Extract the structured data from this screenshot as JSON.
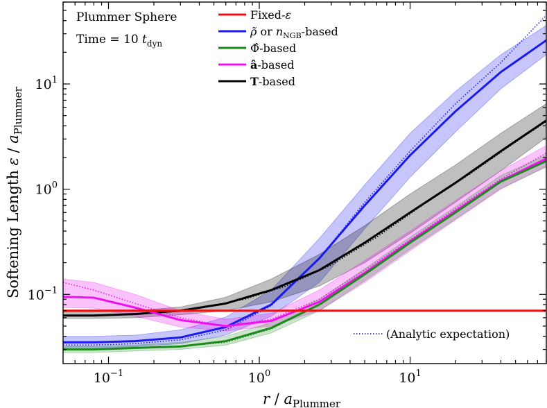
{
  "chart_data": {
    "type": "line",
    "xscale": "log",
    "yscale": "log",
    "xlim": [
      0.05,
      80
    ],
    "ylim": [
      0.022,
      60
    ],
    "xlabel_main": "r",
    "xlabel_sep": " / ",
    "xlabel_sym": "a",
    "xlabel_sub": "Plummer",
    "ylabel_main": "Softening Length  ",
    "ylabel_sym": "ε",
    "ylabel_sep": " / ",
    "ylabel_asym": "a",
    "ylabel_sub": "Plummer",
    "x_ticks": [
      {
        "value": 0.1,
        "base": "10",
        "exp": "−1"
      },
      {
        "value": 1,
        "base": "10",
        "exp": "0"
      },
      {
        "value": 10,
        "base": "10",
        "exp": "1"
      }
    ],
    "y_ticks": [
      {
        "value": 0.1,
        "base": "10",
        "exp": "−1"
      },
      {
        "value": 1,
        "base": "10",
        "exp": "0"
      },
      {
        "value": 10,
        "base": "10",
        "exp": "1"
      }
    ],
    "annotations": {
      "title_line1": "Plummer Sphere",
      "title_line2_prefix": "Time = 10 ",
      "title_line2_sym": "t",
      "title_line2_sub": "dyn",
      "analytic_label": "(Analytic expectation)"
    },
    "legend": {
      "placement": "top-center",
      "entries": [
        {
          "key": "fixed",
          "color": "#ee1111",
          "parts": [
            {
              "t": "Fixed-"
            },
            {
              "t": "ε",
              "i": true
            }
          ]
        },
        {
          "key": "rho",
          "color": "#1a1aee",
          "parts": [
            {
              "t": "ρ̃",
              "i": true
            },
            {
              "t": " or "
            },
            {
              "t": "n",
              "i": true
            },
            {
              "t": "NGB",
              "sub": true
            },
            {
              "t": "-based"
            }
          ]
        },
        {
          "key": "phi",
          "color": "#1a8a1a",
          "parts": [
            {
              "t": "Φ̂"
            },
            {
              "t": "-based"
            }
          ]
        },
        {
          "key": "acc",
          "color": "#ee11ee",
          "parts": [
            {
              "t": "â",
              "b": true
            },
            {
              "t": "-based"
            }
          ]
        },
        {
          "key": "tidal",
          "color": "#000000",
          "parts": [
            {
              "t": "T",
              "b": true
            },
            {
              "t": "-based"
            }
          ]
        }
      ]
    },
    "series": [
      {
        "key": "rho",
        "color": "#1a1aee",
        "band_opacity": 0.25,
        "x": [
          0.05,
          0.08,
          0.15,
          0.3,
          0.6,
          1.2,
          2.5,
          5,
          10,
          20,
          40,
          80
        ],
        "y": [
          0.035,
          0.035,
          0.036,
          0.039,
          0.049,
          0.08,
          0.22,
          0.7,
          2.1,
          5.5,
          13,
          26
        ],
        "lo": [
          0.031,
          0.031,
          0.032,
          0.034,
          0.041,
          0.062,
          0.13,
          0.42,
          1.3,
          3.5,
          9,
          19
        ],
        "hi": [
          0.04,
          0.04,
          0.041,
          0.046,
          0.061,
          0.11,
          0.34,
          1.1,
          3.4,
          8.5,
          19,
          36
        ],
        "analytic_x": [
          0.05,
          0.08,
          0.15,
          0.3,
          0.6,
          1.2,
          2.5,
          5,
          10,
          20,
          40,
          80
        ],
        "analytic_y": [
          0.033,
          0.033,
          0.034,
          0.037,
          0.046,
          0.078,
          0.22,
          0.75,
          2.3,
          6.5,
          16,
          45
        ]
      },
      {
        "key": "tidal",
        "color": "#000000",
        "band_opacity": 0.25,
        "x": [
          0.05,
          0.08,
          0.15,
          0.3,
          0.6,
          1.2,
          2.5,
          5,
          10,
          20,
          40,
          80
        ],
        "y": [
          0.063,
          0.063,
          0.065,
          0.07,
          0.082,
          0.11,
          0.17,
          0.31,
          0.6,
          1.15,
          2.3,
          4.5
        ],
        "lo": [
          0.059,
          0.059,
          0.06,
          0.064,
          0.07,
          0.085,
          0.12,
          0.2,
          0.38,
          0.75,
          1.5,
          3.1
        ],
        "hi": [
          0.068,
          0.068,
          0.07,
          0.076,
          0.094,
          0.14,
          0.24,
          0.45,
          0.9,
          1.7,
          3.4,
          6.5
        ],
        "analytic_x": [
          0.05,
          0.1,
          0.2,
          0.4,
          0.8,
          1.5,
          3,
          6,
          12,
          25,
          50,
          80
        ],
        "analytic_y": [
          0.063,
          0.064,
          0.067,
          0.074,
          0.09,
          0.12,
          0.19,
          0.35,
          0.7,
          1.4,
          2.8,
          4.4
        ]
      },
      {
        "key": "acc",
        "color": "#ee11ee",
        "band_opacity": 0.25,
        "x": [
          0.05,
          0.08,
          0.15,
          0.3,
          0.6,
          1.2,
          2.5,
          5,
          10,
          20,
          40,
          80
        ],
        "y": [
          0.095,
          0.093,
          0.075,
          0.057,
          0.05,
          0.056,
          0.085,
          0.16,
          0.32,
          0.62,
          1.2,
          1.95
        ],
        "lo": [
          0.075,
          0.074,
          0.062,
          0.049,
          0.045,
          0.05,
          0.07,
          0.13,
          0.26,
          0.51,
          1.0,
          1.65
        ],
        "hi": [
          0.14,
          0.13,
          0.1,
          0.07,
          0.058,
          0.066,
          0.11,
          0.21,
          0.4,
          0.78,
          1.5,
          2.6
        ],
        "analytic_x": [
          0.05,
          0.08,
          0.15,
          0.3,
          0.6,
          1.2,
          2.5,
          5,
          10,
          20,
          40,
          80
        ],
        "analytic_y": [
          0.13,
          0.11,
          0.082,
          0.06,
          0.05,
          0.058,
          0.09,
          0.17,
          0.33,
          0.65,
          1.25,
          2.2
        ]
      },
      {
        "key": "phi",
        "color": "#1a8a1a",
        "band_opacity": 0.22,
        "x": [
          0.05,
          0.08,
          0.15,
          0.3,
          0.6,
          1.2,
          2.5,
          5,
          10,
          20,
          40,
          80
        ],
        "y": [
          0.03,
          0.03,
          0.031,
          0.032,
          0.036,
          0.048,
          0.08,
          0.155,
          0.31,
          0.6,
          1.18,
          1.85
        ],
        "lo": [
          0.028,
          0.028,
          0.029,
          0.03,
          0.033,
          0.043,
          0.07,
          0.135,
          0.27,
          0.52,
          1.02,
          1.62
        ],
        "hi": [
          0.032,
          0.032,
          0.033,
          0.035,
          0.04,
          0.054,
          0.09,
          0.175,
          0.35,
          0.68,
          1.35,
          2.1
        ],
        "analytic_x": [
          0.05,
          0.08,
          0.15,
          0.3,
          0.6,
          1.2,
          2.5,
          5,
          10,
          20,
          40,
          80
        ],
        "analytic_y": [
          0.03,
          0.03,
          0.031,
          0.032,
          0.035,
          0.047,
          0.08,
          0.155,
          0.31,
          0.6,
          1.18,
          1.9
        ]
      },
      {
        "key": "fixed",
        "color": "#ee1111",
        "band_opacity": 0,
        "x": [
          0.05,
          80
        ],
        "y": [
          0.07,
          0.07
        ]
      }
    ]
  }
}
